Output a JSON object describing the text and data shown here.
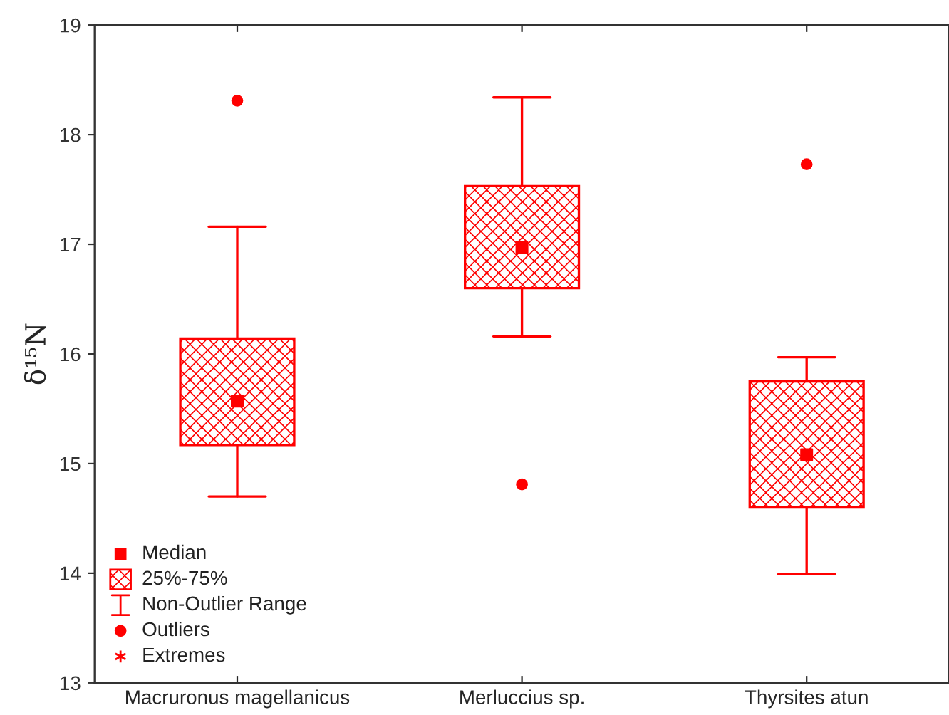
{
  "chart_data": {
    "type": "box",
    "ylabel": "δ¹⁵N",
    "categories": [
      "Macruronus magellanicus",
      "Merluccius sp.",
      "Thyrsites atun"
    ],
    "color": "#ff0000",
    "boxes": [
      {
        "low": 14.7,
        "q1": 15.17,
        "median": 15.57,
        "q3": 16.14,
        "high": 17.16,
        "outliers": [
          18.31
        ]
      },
      {
        "low": 16.16,
        "q1": 16.6,
        "median": 16.97,
        "q3": 17.53,
        "high": 18.34,
        "outliers": [
          14.81
        ]
      },
      {
        "low": 13.99,
        "q1": 14.6,
        "median": 15.08,
        "q3": 15.75,
        "high": 15.97,
        "outliers": [
          17.73
        ]
      }
    ],
    "ylim": [
      13,
      19
    ],
    "yticks": [
      13,
      14,
      15,
      16,
      17,
      18,
      19
    ],
    "grid": false,
    "annotations": [
      "Median",
      "25%-75%",
      "Non-Outlier Range",
      "Outliers",
      "Extremes"
    ]
  }
}
